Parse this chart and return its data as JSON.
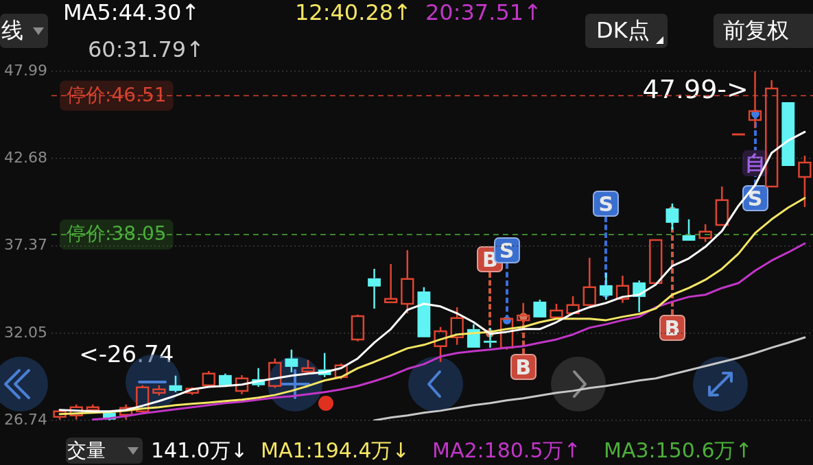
{
  "chart_data": {
    "type": "candlestick",
    "categories": [
      null,
      null,
      null,
      null,
      null,
      null,
      null,
      null,
      null,
      null,
      null,
      null,
      null,
      null,
      null,
      null,
      null,
      null,
      null,
      null,
      null,
      null,
      null,
      null,
      null,
      null,
      null,
      null,
      null,
      null,
      null,
      null,
      null,
      null,
      null,
      null,
      null,
      null,
      null,
      null,
      null,
      null,
      null,
      null,
      null,
      null
    ],
    "ohlc": [
      [
        26.96,
        27.42,
        26.79,
        27.29
      ],
      [
        27.04,
        27.71,
        26.79,
        27.54
      ],
      [
        27.38,
        27.71,
        27.29,
        27.54
      ],
      [
        27.21,
        27.29,
        26.74,
        26.79
      ],
      [
        27.08,
        27.71,
        26.79,
        27.5
      ],
      [
        27.29,
        28.88,
        27.17,
        28.75
      ],
      [
        28.42,
        28.88,
        28.25,
        28.63
      ],
      [
        28.88,
        29.46,
        28.46,
        28.54
      ],
      [
        28.42,
        28.75,
        28.29,
        28.67
      ],
      [
        28.88,
        29.75,
        28.75,
        29.59
      ],
      [
        29.5,
        29.59,
        28.84,
        28.88
      ],
      [
        28.54,
        29.5,
        28.34,
        29.3
      ],
      [
        29.25,
        29.92,
        28.79,
        28.88
      ],
      [
        28.84,
        30.51,
        28.71,
        30.25
      ],
      [
        30.51,
        31.05,
        29.67,
        30.0
      ],
      [
        29.71,
        30.42,
        29.59,
        29.92
      ],
      [
        29.84,
        30.84,
        29.38,
        29.5
      ],
      [
        29.38,
        30.21,
        29.25,
        30.09
      ],
      [
        31.67,
        33.18,
        31.55,
        33.09
      ],
      [
        35.39,
        35.97,
        33.55,
        34.89
      ],
      [
        33.93,
        36.26,
        33.93,
        34.14
      ],
      [
        33.84,
        37.1,
        33.26,
        35.35
      ],
      [
        34.59,
        34.85,
        31.8,
        31.8
      ],
      [
        31.26,
        32.43,
        30.3,
        32.17
      ],
      [
        31.8,
        33.63,
        31.34,
        32.97
      ],
      [
        32.3,
        32.59,
        31.17,
        31.17
      ],
      [
        31.59,
        32.38,
        31.17,
        31.47
      ],
      [
        31.17,
        32.93,
        31.05,
        32.93
      ],
      [
        32.84,
        33.89,
        32.51,
        33.13
      ],
      [
        33.97,
        34.09,
        33.01,
        33.01
      ],
      [
        33.01,
        33.84,
        33.01,
        33.43
      ],
      [
        33.26,
        34.3,
        33.26,
        33.76
      ],
      [
        33.76,
        36.64,
        33.76,
        34.85
      ],
      [
        34.97,
        35.72,
        34.09,
        34.34
      ],
      [
        34.14,
        35.55,
        33.89,
        34.93
      ],
      [
        35.14,
        35.26,
        33.34,
        34.26
      ],
      [
        35.1,
        37.72,
        35.1,
        37.72
      ],
      [
        39.64,
        39.94,
        38.35,
        38.77
      ],
      [
        38.02,
        38.98,
        37.68,
        37.68
      ],
      [
        37.85,
        38.68,
        37.6,
        38.23
      ],
      [
        38.64,
        40.98,
        38.64,
        40.15
      ],
      [
        44.15,
        44.15,
        44.15,
        44.15
      ],
      [
        45.03,
        47.99,
        44.53,
        45.57
      ],
      [
        40.98,
        47.45,
        40.98,
        46.95
      ],
      [
        46.11,
        46.11,
        42.23,
        42.23
      ],
      [
        41.56,
        42.86,
        39.73,
        42.44
      ]
    ],
    "colors": [
      "#e0442f",
      "#e0442f",
      "#e0442f",
      "#5ff3f3",
      "#e0442f",
      "#e0442f",
      "#e0442f",
      "#5ff3f3",
      "#e0442f",
      "#e0442f",
      "#5ff3f3",
      "#e0442f",
      "#5ff3f3",
      "#e0442f",
      "#5ff3f3",
      "#e0442f",
      "#5ff3f3",
      "#e0442f",
      "#e0442f",
      "#5ff3f3",
      "#e0442f",
      "#e0442f",
      "#5ff3f3",
      "#e0442f",
      "#e0442f",
      "#5ff3f3",
      "#5ff3f3",
      "#e0442f",
      "#e0442f",
      "#5ff3f3",
      "#e0442f",
      "#e0442f",
      "#e0442f",
      "#5ff3f3",
      "#e0442f",
      "#5ff3f3",
      "#e0442f",
      "#5ff3f3",
      "#5ff3f3",
      "#e0442f",
      "#e0442f",
      "#e0442f",
      "#e0442f",
      "#e0442f",
      "#5ff3f3",
      "#e0442f"
    ],
    "series": [
      {
        "type": "line",
        "name": "MA5:44.30↑",
        "color": "#ffffff",
        "values": [
          27.38,
          27.33,
          27.29,
          27.29,
          27.38,
          27.63,
          27.92,
          28.25,
          28.63,
          28.79,
          28.84,
          28.92,
          29.13,
          29.3,
          29.46,
          29.59,
          29.67,
          29.92,
          30.51,
          31.47,
          32.3,
          33.47,
          33.84,
          33.68,
          33.26,
          32.72,
          32.01,
          32.13,
          32.3,
          32.3,
          32.72,
          33.26,
          33.63,
          33.89,
          34.26,
          34.39,
          35.01,
          36.14,
          36.6,
          37.31,
          38.27,
          39.81,
          41.06,
          43.02,
          43.78,
          44.3
        ]
      },
      {
        "type": "line",
        "name": "12:40.28↑",
        "color": "#f5e663",
        "values": [
          27.13,
          27.17,
          27.21,
          27.25,
          27.33,
          27.46,
          27.54,
          27.67,
          27.75,
          27.83,
          27.92,
          28.0,
          28.13,
          28.29,
          28.54,
          28.84,
          29.17,
          29.38,
          29.92,
          30.3,
          30.71,
          31.13,
          31.34,
          31.67,
          31.97,
          32.05,
          32.13,
          32.3,
          32.43,
          32.72,
          32.93,
          32.93,
          32.93,
          32.84,
          33.05,
          33.22,
          33.55,
          34.39,
          34.8,
          35.3,
          35.97,
          36.89,
          38.14,
          38.98,
          39.69,
          40.28
        ]
      },
      {
        "type": "line",
        "name": "20:37.51↑",
        "color": "#c236c8",
        "values": [
          null,
          null,
          26.79,
          26.87,
          27.0,
          27.17,
          27.29,
          27.42,
          27.54,
          27.67,
          27.79,
          27.88,
          28.0,
          28.13,
          28.21,
          28.34,
          28.46,
          28.63,
          28.84,
          29.13,
          29.46,
          29.88,
          30.17,
          30.63,
          30.84,
          30.96,
          31.05,
          31.17,
          31.26,
          31.47,
          31.67,
          31.97,
          32.38,
          32.59,
          32.84,
          33.05,
          33.63,
          33.97,
          34.26,
          34.39,
          34.8,
          35.1,
          35.85,
          36.47,
          36.97,
          37.51
        ]
      },
      {
        "type": "line",
        "name": "60:31.79↑",
        "color": "#c8c8c8",
        "values": [
          null,
          null,
          null,
          null,
          null,
          null,
          null,
          null,
          null,
          null,
          null,
          null,
          null,
          null,
          null,
          null,
          null,
          null,
          null,
          26.74,
          26.92,
          27.04,
          27.21,
          27.33,
          27.5,
          27.67,
          27.79,
          27.96,
          28.09,
          28.25,
          28.42,
          28.54,
          28.71,
          28.84,
          29.0,
          29.17,
          29.3,
          29.55,
          29.8,
          30.05,
          30.3,
          30.55,
          30.84,
          31.17,
          31.47,
          31.79
        ]
      }
    ],
    "ylim": [
      26.74,
      47.99
    ],
    "yticks": [
      47.99,
      42.68,
      37.37,
      32.05,
      26.74
    ],
    "tick_labels": "y",
    "grid": "y",
    "legend": "top left",
    "marker": "none",
    "ref_lines": [
      {
        "axis": "y",
        "value": 46.51,
        "label": "停价:46.51",
        "color": "#d9432f",
        "line_style": "dashed"
      },
      {
        "axis": "y",
        "value": 38.05,
        "label": "停价:38.05",
        "color": "#4caf3a",
        "line_style": "dashed"
      }
    ],
    "annotations": [
      "线",
      "DK点",
      "前复权",
      "47.99->",
      "<-26.74",
      "B",
      "S",
      "S",
      "B",
      "B",
      "S",
      "自",
      "交量",
      "141.0万↓",
      "MA1:194.4万↓",
      "MA2:180.5万↑",
      "MA3:150.6万↑"
    ]
  }
}
